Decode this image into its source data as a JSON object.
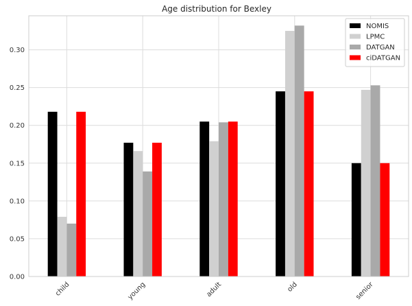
{
  "chart_data": {
    "type": "bar",
    "title": "Age distribution for Bexley",
    "xlabel": "",
    "ylabel": "",
    "categories": [
      "child",
      "young",
      "adult",
      "old",
      "senior"
    ],
    "series": [
      {
        "name": "NOMIS",
        "color": "#000000",
        "values": [
          0.218,
          0.177,
          0.205,
          0.245,
          0.15
        ]
      },
      {
        "name": "LPMC",
        "color": "#d0d0d0",
        "values": [
          0.079,
          0.166,
          0.179,
          0.325,
          0.247
        ]
      },
      {
        "name": "DATGAN",
        "color": "#a9a9a9",
        "values": [
          0.07,
          0.139,
          0.204,
          0.332,
          0.253
        ]
      },
      {
        "name": "ciDATGAN",
        "color": "#ff0000",
        "values": [
          0.218,
          0.177,
          0.205,
          0.245,
          0.15
        ]
      }
    ],
    "ylim": [
      0,
      0.345
    ],
    "yticks": [
      "0.00",
      "0.05",
      "0.10",
      "0.15",
      "0.20",
      "0.25",
      "0.30"
    ],
    "grid": true,
    "legend_position": "top-right"
  }
}
